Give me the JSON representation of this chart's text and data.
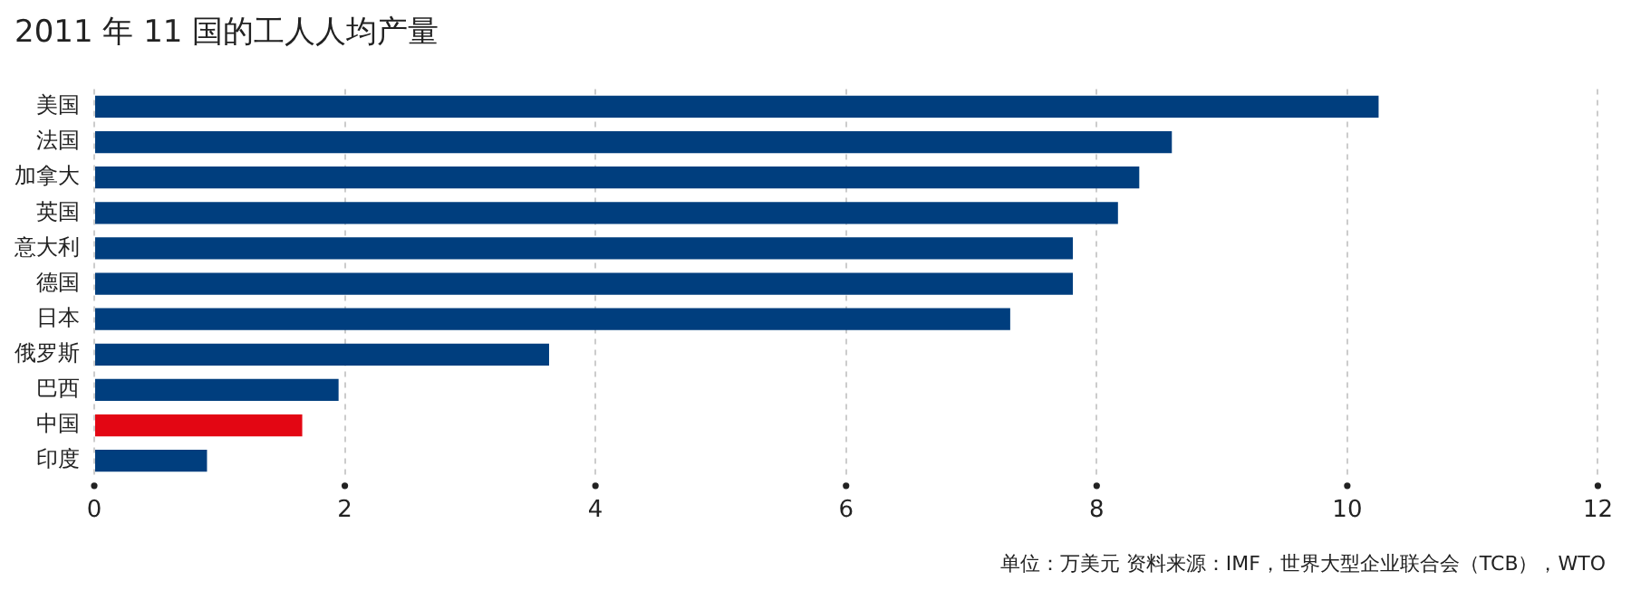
{
  "chart_data": {
    "type": "bar",
    "orientation": "horizontal",
    "title": "2011 年 11 国的工人人均产量",
    "categories": [
      "美国",
      "法国",
      "加拿大",
      "英国",
      "意大利",
      "德国",
      "日本",
      "俄罗斯",
      "巴西",
      "中国",
      "印度"
    ],
    "values": [
      10.25,
      8.6,
      8.34,
      8.17,
      7.81,
      7.81,
      7.31,
      3.63,
      1.95,
      1.66,
      0.9
    ],
    "colors": [
      "#003e7e",
      "#003e7e",
      "#003e7e",
      "#003e7e",
      "#003e7e",
      "#003e7e",
      "#003e7e",
      "#003e7e",
      "#003e7e",
      "#e30613",
      "#003e7e"
    ],
    "xlim": [
      0,
      12
    ],
    "xticks": [
      0,
      2,
      4,
      6,
      8,
      10,
      12
    ],
    "grid": "x",
    "legend": false,
    "annotations": [
      "单位：万美元    资料来源：IMF，世界大型企业联合会（TCB），WTO"
    ]
  }
}
